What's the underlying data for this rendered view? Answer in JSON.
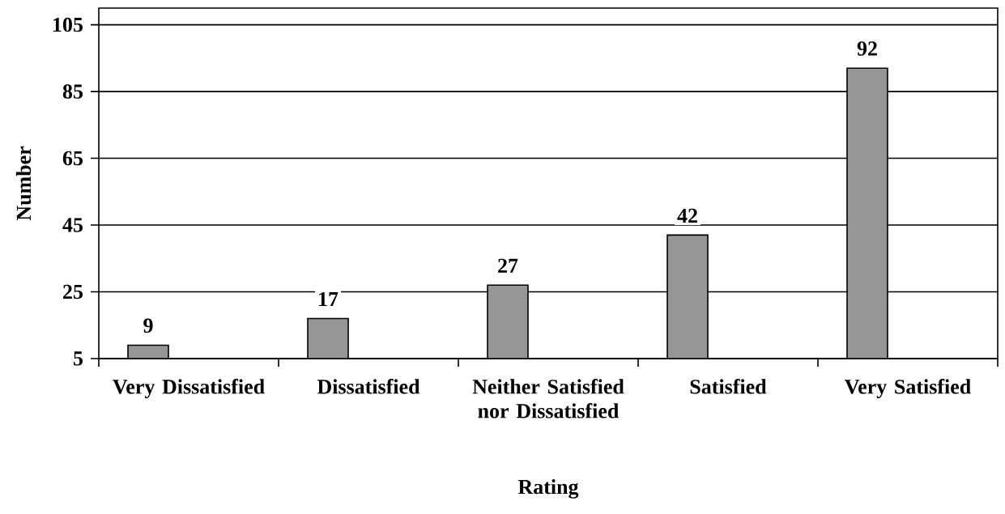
{
  "chart_data": {
    "type": "bar",
    "xlabel": "Rating",
    "ylabel": "Number",
    "categories": [
      "Very Dissatisfied",
      "Dissatisfied",
      "Neither Satisfied nor Dissatisfied",
      "Satisfied",
      "Very Satisfied"
    ],
    "values": [
      9,
      17,
      27,
      42,
      92
    ],
    "color": "#969696",
    "ylim": [
      5,
      110
    ],
    "yticks": [
      5,
      25,
      45,
      65,
      85,
      105
    ],
    "grid": "y",
    "data_labels": true
  }
}
